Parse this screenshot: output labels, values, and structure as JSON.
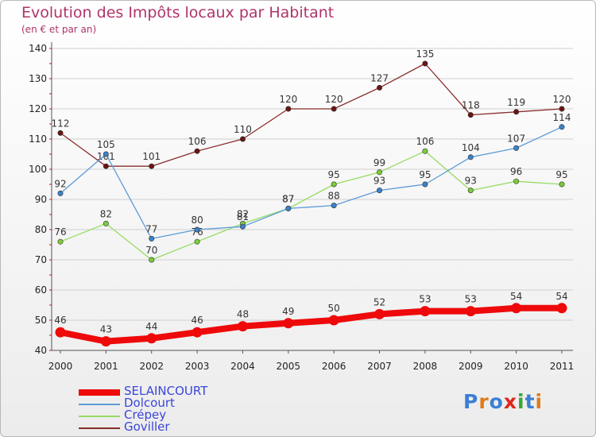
{
  "header": {
    "title": "Evolution des Impôts locaux par Habitant",
    "subtitle": "(en € et par an)"
  },
  "logo": {
    "text": "Proxiti",
    "letters": [
      "P",
      "r",
      "o",
      "x",
      "i",
      "t",
      "i"
    ],
    "colors": [
      "#3a7fd5",
      "#e07b1a",
      "#3a7fd5",
      "#e2261b",
      "#3aa53a",
      "#3a7fd5",
      "#e07b1a"
    ]
  },
  "chart_data": {
    "type": "line",
    "title": "Evolution des Impôts locaux par Habitant",
    "subtitle": "(en € et par an)",
    "xlabel": "",
    "ylabel": "",
    "x": [
      "2000",
      "2001",
      "2002",
      "2003",
      "2004",
      "2005",
      "2006",
      "2007",
      "2008",
      "2009",
      "2010",
      "2011"
    ],
    "ylim": [
      40,
      140
    ],
    "yticks": [
      40,
      50,
      60,
      70,
      80,
      90,
      100,
      110,
      120,
      130,
      140
    ],
    "grid": "horizontal",
    "legend_position": "bottom-left",
    "series": [
      {
        "name": "SELAINCOURT",
        "color": "#ee0a0a",
        "marker": "#ee0a0a",
        "values": [
          46,
          43,
          44,
          46,
          48,
          49,
          50,
          52,
          53,
          53,
          54,
          54
        ]
      },
      {
        "name": "Dolcourt",
        "color": "#5c9bd6",
        "marker": "#3b82c9",
        "values": [
          92,
          105,
          77,
          80,
          81,
          87,
          88,
          93,
          95,
          104,
          107,
          114
        ]
      },
      {
        "name": "Crépey",
        "color": "#96dc62",
        "marker": "#7bcc3c",
        "values": [
          76,
          82,
          70,
          76,
          82,
          87,
          95,
          99,
          106,
          93,
          96,
          95
        ]
      },
      {
        "name": "Goviller",
        "color": "#8a2c2c",
        "marker": "#6b1414",
        "values": [
          112,
          101,
          101,
          106,
          110,
          120,
          120,
          127,
          135,
          118,
          119,
          120
        ]
      }
    ]
  }
}
